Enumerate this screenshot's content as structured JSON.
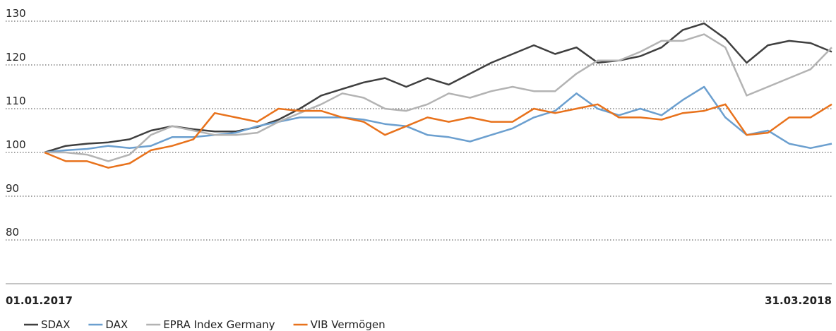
{
  "chart_data": {
    "type": "line",
    "categories": [
      "01.01.2017",
      null,
      null,
      null,
      null,
      null,
      null,
      null,
      null,
      null,
      null,
      null,
      null,
      null,
      null,
      null,
      null,
      null,
      null,
      null,
      null,
      null,
      null,
      null,
      null,
      null,
      null,
      null,
      null,
      null,
      null,
      null,
      null,
      null,
      null,
      null,
      null,
      "31.03.2018"
    ],
    "series": [
      {
        "name": "SDAX",
        "color": "#3f3f3f",
        "values": [
          100,
          101.5,
          102,
          102.3,
          103,
          105,
          106,
          105.3,
          104.8,
          104.8,
          105.8,
          107.5,
          110,
          113,
          114.5,
          116,
          117,
          115,
          117,
          115.5,
          118,
          120.5,
          122.5,
          124.5,
          122.5,
          124,
          120.5,
          121,
          122,
          124,
          128,
          129.5,
          126,
          120.5,
          124.5,
          125.5,
          125,
          123
        ]
      },
      {
        "name": "DAX",
        "color": "#6b9fcf",
        "values": [
          100,
          100.5,
          100.8,
          101.5,
          101,
          101.5,
          103.5,
          103.5,
          104,
          104.5,
          106,
          107,
          108,
          108,
          108,
          107.5,
          106.5,
          106,
          104,
          103.5,
          102.5,
          104,
          105.5,
          108,
          109.5,
          113.5,
          110,
          108.5,
          110,
          108.5,
          112,
          115,
          108,
          104,
          105,
          102,
          101,
          102
        ]
      },
      {
        "name": "EPRA Index Germany",
        "color": "#b3b3b3",
        "values": [
          100,
          100,
          99.5,
          98,
          99.5,
          104,
          106,
          105,
          104,
          104,
          104.5,
          107,
          109,
          111,
          113.5,
          112.5,
          110,
          109.5,
          111,
          113.5,
          112.5,
          114,
          115,
          114,
          114,
          118,
          121,
          121,
          123,
          125.5,
          125.5,
          127,
          124,
          113,
          115,
          117,
          119,
          124
        ]
      },
      {
        "name": "VIB Vermögen",
        "color": "#e8721c",
        "values": [
          100,
          98,
          98,
          96.5,
          97.5,
          100.5,
          101.5,
          103,
          109,
          108,
          107,
          110,
          109.5,
          109.5,
          108,
          107,
          104,
          106,
          108,
          107,
          108,
          107,
          107,
          110,
          109,
          110,
          111,
          108,
          108,
          107.5,
          109,
          109.5,
          111,
          104,
          104.5,
          108,
          108,
          111
        ]
      }
    ],
    "ylim": [
      70,
      130
    ],
    "yticks": [
      80,
      90,
      100,
      110,
      120,
      130
    ],
    "grid": true
  }
}
